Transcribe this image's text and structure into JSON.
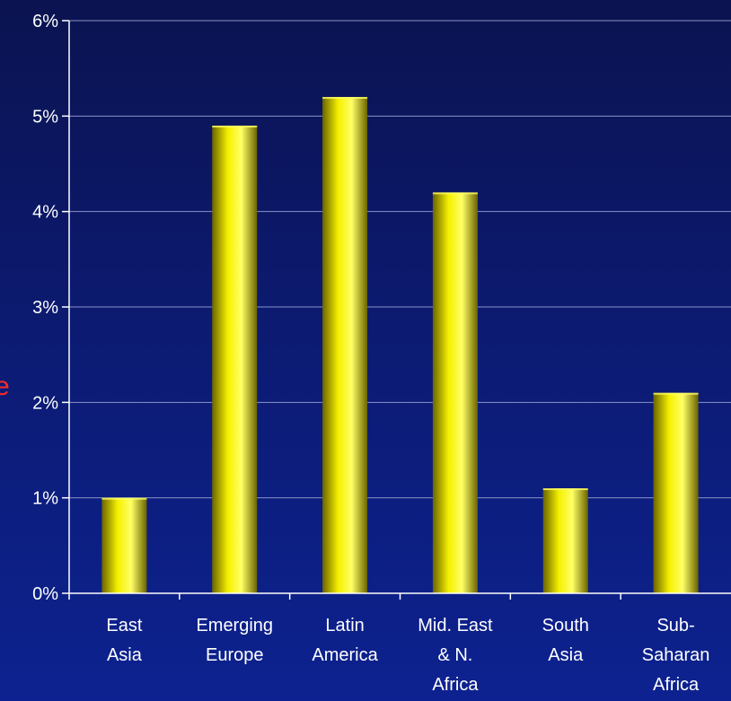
{
  "colors": {
    "background_top": "#0b1350",
    "background_bottom": "#0d2290",
    "bar_light": "#ffff66",
    "bar_mid": "#f5f000",
    "bar_dark": "#6b6400",
    "gridline": "#8a93c8",
    "axis": "#ffffff",
    "text": "#ffffff",
    "side_glyph": "#ff2a2a"
  },
  "side_glyph": "e",
  "chart_data": {
    "type": "bar",
    "title": "",
    "xlabel": "",
    "ylabel": "",
    "categories": [
      [
        "East",
        "Asia"
      ],
      [
        "Emerging",
        "Europe"
      ],
      [
        "Latin",
        "America"
      ],
      [
        "Mid. East",
        "& N.",
        "Africa"
      ],
      [
        "South",
        "Asia"
      ],
      [
        "Sub-",
        "Saharan",
        "Africa"
      ]
    ],
    "values": [
      1.0,
      4.9,
      5.2,
      4.2,
      1.1,
      2.1
    ],
    "ylim": [
      0,
      6
    ],
    "yticks": [
      0,
      1,
      2,
      3,
      4,
      5,
      6
    ],
    "ytick_labels": [
      "0%",
      "1%",
      "2%",
      "3%",
      "4%",
      "5%",
      "6%"
    ],
    "grid": true,
    "legend": "none"
  }
}
